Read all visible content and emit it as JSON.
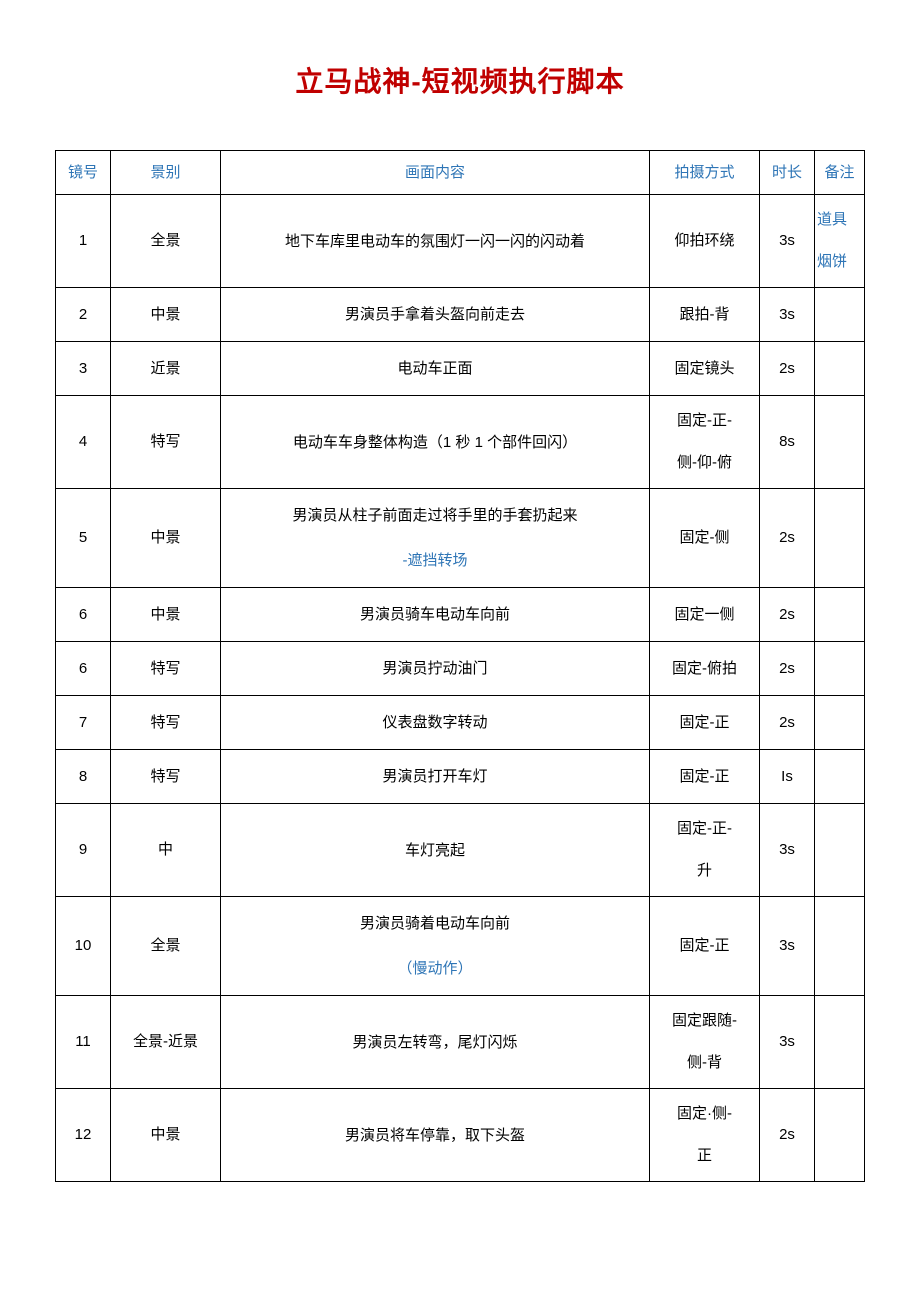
{
  "title": "立马战神-短视频执行脚本",
  "colors": {
    "title_color": "#c00000",
    "header_color": "#2e75b6",
    "accent_color": "#2e75b6",
    "text_color": "#000000",
    "border_color": "#000000",
    "background": "#ffffff"
  },
  "columns": [
    "镜号",
    "景别",
    "画面内容",
    "拍摄方式",
    "时长",
    "备注"
  ],
  "rows": [
    {
      "num": "1",
      "shot_type": "全景",
      "content": [
        {
          "t": "地下车库里电动车的氛围灯一闪一闪的闪动着"
        }
      ],
      "method": [
        {
          "t": "仰拍环绕"
        }
      ],
      "duration": "3s",
      "note": [
        {
          "t": "道具",
          "c": "accent"
        },
        {
          "t": "烟饼",
          "c": "accent"
        }
      ]
    },
    {
      "num": "2",
      "shot_type": "中景",
      "content": [
        {
          "t": "男演员手拿着头盔向前走去"
        }
      ],
      "method": [
        {
          "t": "跟拍-背"
        }
      ],
      "duration": "3s",
      "note": []
    },
    {
      "num": "3",
      "shot_type": "近景",
      "content": [
        {
          "t": "电动车正面"
        }
      ],
      "method": [
        {
          "t": "固定镜头"
        }
      ],
      "duration": "2s",
      "note": []
    },
    {
      "num": "4",
      "shot_type": "特写",
      "content": [
        {
          "t": "电动车车身整体构造（1 秒 1 个部件回闪）"
        }
      ],
      "method": [
        {
          "t": "固定-正-"
        },
        {
          "t": "侧-仰-俯"
        }
      ],
      "duration": "8s",
      "note": []
    },
    {
      "num": "5",
      "shot_type": "中景",
      "content": [
        {
          "t": "男演员从柱子前面走过将手里的手套扔起来"
        },
        {
          "t": "-遮挡转场",
          "c": "accent"
        }
      ],
      "method": [
        {
          "t": "固定-侧"
        }
      ],
      "duration": "2s",
      "note": []
    },
    {
      "num": "6",
      "shot_type": "中景",
      "content": [
        {
          "t": "男演员骑车电动车向前"
        }
      ],
      "method": [
        {
          "t": "固定一侧"
        }
      ],
      "duration": "2s",
      "note": []
    },
    {
      "num": "6",
      "shot_type": "特写",
      "content": [
        {
          "t": "男演员拧动油门"
        }
      ],
      "method": [
        {
          "t": "固定-俯拍"
        }
      ],
      "duration": "2s",
      "note": []
    },
    {
      "num": "7",
      "shot_type": "特写",
      "content": [
        {
          "t": "仪表盘数字转动"
        }
      ],
      "method": [
        {
          "t": "固定-正"
        }
      ],
      "duration": "2s",
      "note": []
    },
    {
      "num": "8",
      "shot_type": "特写",
      "content": [
        {
          "t": "男演员打开车灯"
        }
      ],
      "method": [
        {
          "t": "固定-正"
        }
      ],
      "duration": "Is",
      "note": []
    },
    {
      "num": "9",
      "shot_type": "中",
      "content": [
        {
          "t": "车灯亮起"
        }
      ],
      "method": [
        {
          "t": "固定-正-"
        },
        {
          "t": "升"
        }
      ],
      "duration": "3s",
      "note": []
    },
    {
      "num": "10",
      "shot_type": "全景",
      "content": [
        {
          "t": "男演员骑着电动车向前"
        },
        {
          "t": "（慢动作）",
          "c": "accent"
        }
      ],
      "method": [
        {
          "t": "固定-正"
        }
      ],
      "duration": "3s",
      "note": []
    },
    {
      "num": "11",
      "shot_type": "全景-近景",
      "content": [
        {
          "t": "男演员左转弯，尾灯闪烁"
        }
      ],
      "method": [
        {
          "t": "固定跟随-"
        },
        {
          "t": "侧-背"
        }
      ],
      "duration": "3s",
      "note": []
    },
    {
      "num": "12",
      "shot_type": "中景",
      "content": [
        {
          "t": "男演员将车停靠，取下头盔"
        }
      ],
      "method": [
        {
          "t": "固定·侧-"
        },
        {
          "t": "正"
        }
      ],
      "duration": "2s",
      "note": []
    }
  ]
}
